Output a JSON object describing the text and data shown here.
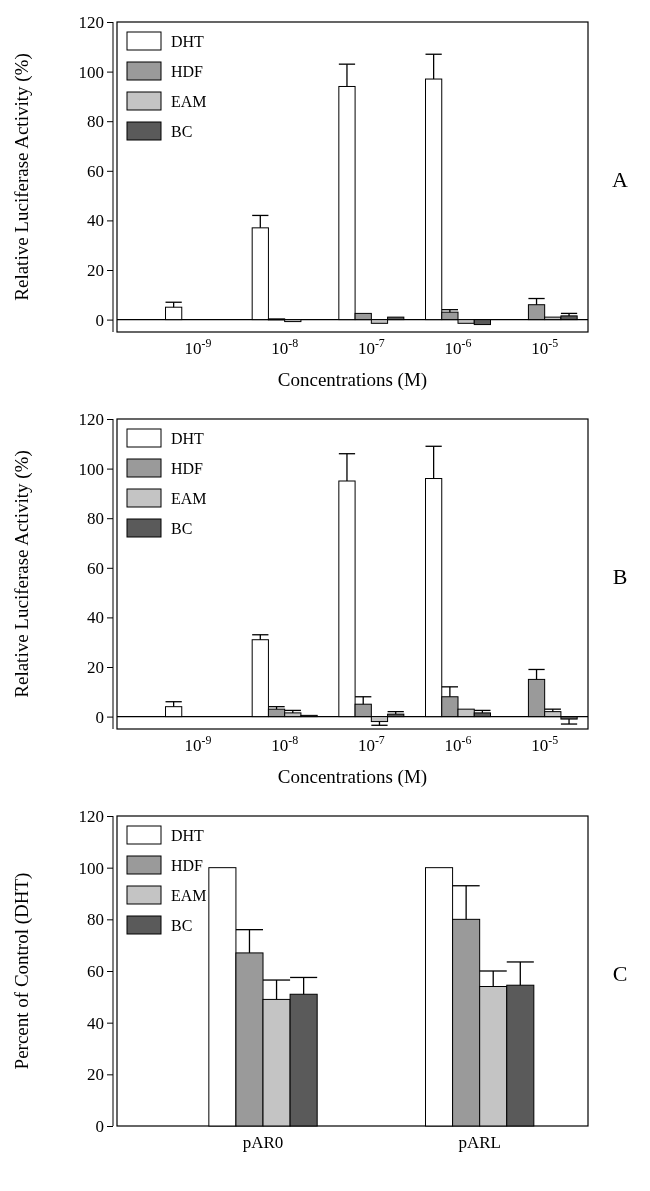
{
  "chart_data": [
    {
      "type": "bar",
      "xlabel": "Concentrations (M)",
      "ylabel": "Relative Luciferase Activity (%)",
      "annotations": [
        "A"
      ],
      "categories": [
        "10$^{-9}$",
        "10$^{-8}$",
        "10$^{-7}$",
        "10$^{-6}$",
        "10$^{-5}$"
      ],
      "ylim": [
        -5,
        120
      ],
      "yticks": [
        0,
        20,
        40,
        60,
        80,
        100,
        120
      ],
      "legend": "top left",
      "series": [
        {
          "name": "DHT",
          "color": "#ffffff",
          "values": [
            5,
            37,
            94,
            97,
            null
          ],
          "errors": [
            [
              5,
              7
            ],
            [
              37,
              42
            ],
            [
              94,
              103
            ],
            [
              97,
              107
            ],
            null
          ]
        },
        {
          "name": "HDF",
          "color": "#9a9a9a",
          "values": [
            null,
            0.3,
            2.5,
            3,
            6
          ],
          "errors": [
            null,
            null,
            null,
            [
              3,
              4
            ],
            [
              6,
              8.5
            ]
          ]
        },
        {
          "name": "EAM",
          "color": "#c4c4c4",
          "values": [
            null,
            -0.8,
            -1.5,
            -1.5,
            1
          ],
          "errors": [
            null,
            null,
            null,
            null,
            null
          ]
        },
        {
          "name": "BC",
          "color": "#5a5a5a",
          "values": [
            null,
            null,
            1,
            -2,
            1.5
          ],
          "errors": [
            null,
            null,
            null,
            null,
            [
              1.5,
              2.5
            ]
          ]
        }
      ]
    },
    {
      "type": "bar",
      "xlabel": "Concentrations (M)",
      "ylabel": "Relative Luciferase Activity (%)",
      "annotations": [
        "B"
      ],
      "categories": [
        "10$^{-9}$",
        "10$^{-8}$",
        "10$^{-7}$",
        "10$^{-6}$",
        "10$^{-5}$"
      ],
      "ylim": [
        -5,
        120
      ],
      "yticks": [
        0,
        20,
        40,
        60,
        80,
        100,
        120
      ],
      "legend": "top left",
      "series": [
        {
          "name": "DHT",
          "color": "#ffffff",
          "values": [
            4,
            31,
            95,
            96,
            null
          ],
          "errors": [
            [
              4,
              6
            ],
            [
              31,
              33
            ],
            [
              95,
              106
            ],
            [
              96,
              109
            ],
            null
          ]
        },
        {
          "name": "HDF",
          "color": "#9a9a9a",
          "values": [
            null,
            3,
            5,
            8,
            15
          ],
          "errors": [
            null,
            [
              3,
              4
            ],
            [
              5,
              8
            ],
            [
              8,
              12
            ],
            [
              15,
              19
            ]
          ]
        },
        {
          "name": "EAM",
          "color": "#c4c4c4",
          "values": [
            null,
            1.5,
            -2,
            3,
            2
          ],
          "errors": [
            null,
            [
              1.5,
              2.5
            ],
            [
              -3.5,
              -2
            ],
            null,
            [
              2,
              3
            ]
          ]
        },
        {
          "name": "BC",
          "color": "#5a5a5a",
          "values": [
            null,
            0.5,
            1,
            1.5,
            -1
          ],
          "errors": [
            null,
            null,
            [
              1,
              2
            ],
            [
              1.5,
              2.5
            ],
            [
              -3,
              -1
            ]
          ]
        }
      ]
    },
    {
      "type": "bar",
      "ylabel": "Percent of Control (DHT)",
      "annotations": [
        "C"
      ],
      "categories": [
        "pAR0",
        "pARL"
      ],
      "ylim": [
        0,
        120
      ],
      "yticks": [
        0,
        20,
        40,
        60,
        80,
        100,
        120
      ],
      "legend": "top left",
      "series": [
        {
          "name": "DHT",
          "color": "#ffffff",
          "values": [
            100,
            100
          ]
        },
        {
          "name": "HDF",
          "color": "#9a9a9a",
          "values": [
            67,
            80
          ],
          "errors": [
            [
              67,
              76
            ],
            [
              80,
              93
            ]
          ]
        },
        {
          "name": "EAM",
          "color": "#c4c4c4",
          "values": [
            49,
            54
          ],
          "errors": [
            [
              49,
              56.5
            ],
            [
              54,
              60
            ]
          ]
        },
        {
          "name": "BC",
          "color": "#5a5a5a",
          "values": [
            51,
            54.5
          ],
          "errors": [
            [
              51,
              57.5
            ],
            [
              54.5,
              63.5
            ]
          ]
        }
      ]
    }
  ]
}
